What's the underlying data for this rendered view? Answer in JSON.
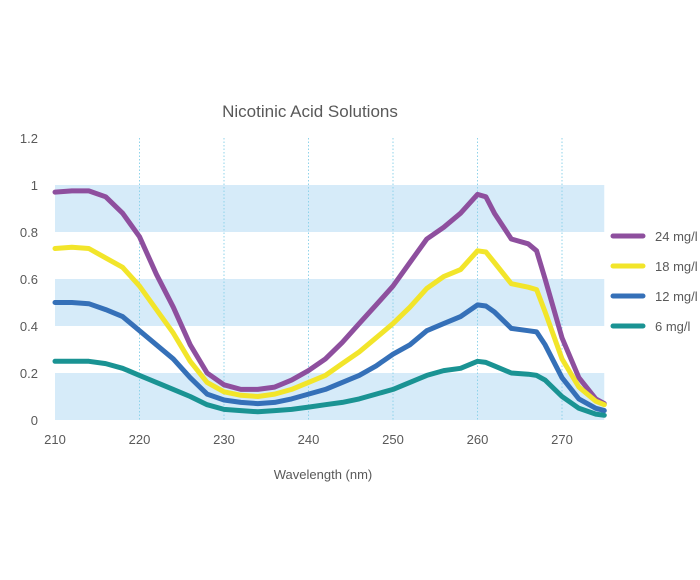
{
  "chart_data": {
    "type": "line",
    "title": "Nicotinic Acid Solutions",
    "xlabel": "Wavelength (nm)",
    "ylabel": "",
    "xlim": [
      210,
      275
    ],
    "ylim": [
      0,
      1.2
    ],
    "x_ticks": [
      "210",
      "220",
      "230",
      "240",
      "250",
      "260",
      "270"
    ],
    "y_ticks": [
      "0",
      "0.2",
      "0.4",
      "0.6",
      "0.8",
      "1",
      "1.2"
    ],
    "grid": "vertical dotted lines; alternating horizontal bands",
    "band_color": "#d6ebf9",
    "legend_position": "right",
    "x": [
      210,
      212,
      214,
      216,
      218,
      220,
      222,
      224,
      226,
      228,
      230,
      232,
      234,
      236,
      238,
      240,
      242,
      244,
      246,
      248,
      250,
      252,
      254,
      256,
      258,
      260,
      261,
      262,
      264,
      266,
      267,
      268,
      270,
      272,
      274,
      275
    ],
    "series": [
      {
        "name": "24 mg/l",
        "color": "#8e4f9e",
        "values": [
          0.97,
          0.975,
          0.975,
          0.95,
          0.88,
          0.78,
          0.62,
          0.48,
          0.32,
          0.2,
          0.15,
          0.13,
          0.13,
          0.14,
          0.17,
          0.21,
          0.26,
          0.33,
          0.41,
          0.49,
          0.57,
          0.67,
          0.77,
          0.82,
          0.88,
          0.96,
          0.95,
          0.88,
          0.77,
          0.75,
          0.72,
          0.6,
          0.35,
          0.18,
          0.09,
          0.07
        ]
      },
      {
        "name": "18 mg/l",
        "color": "#f2e52a",
        "values": [
          0.73,
          0.735,
          0.73,
          0.69,
          0.65,
          0.57,
          0.47,
          0.37,
          0.25,
          0.16,
          0.12,
          0.105,
          0.1,
          0.11,
          0.13,
          0.16,
          0.19,
          0.24,
          0.29,
          0.35,
          0.41,
          0.48,
          0.56,
          0.61,
          0.64,
          0.72,
          0.715,
          0.67,
          0.58,
          0.565,
          0.555,
          0.46,
          0.26,
          0.14,
          0.08,
          0.065
        ]
      },
      {
        "name": "12 mg/l",
        "color": "#3570b8",
        "values": [
          0.5,
          0.5,
          0.495,
          0.47,
          0.44,
          0.38,
          0.32,
          0.26,
          0.18,
          0.11,
          0.085,
          0.075,
          0.07,
          0.075,
          0.09,
          0.11,
          0.13,
          0.16,
          0.19,
          0.23,
          0.28,
          0.32,
          0.38,
          0.41,
          0.44,
          0.49,
          0.485,
          0.46,
          0.39,
          0.38,
          0.375,
          0.32,
          0.18,
          0.09,
          0.05,
          0.04
        ]
      },
      {
        "name": "6 mg/l",
        "color": "#1a9393",
        "values": [
          0.25,
          0.25,
          0.25,
          0.24,
          0.22,
          0.19,
          0.16,
          0.13,
          0.1,
          0.065,
          0.045,
          0.04,
          0.035,
          0.04,
          0.045,
          0.055,
          0.065,
          0.075,
          0.09,
          0.11,
          0.13,
          0.16,
          0.19,
          0.21,
          0.22,
          0.25,
          0.245,
          0.23,
          0.2,
          0.195,
          0.19,
          0.17,
          0.1,
          0.05,
          0.025,
          0.02
        ]
      }
    ]
  }
}
